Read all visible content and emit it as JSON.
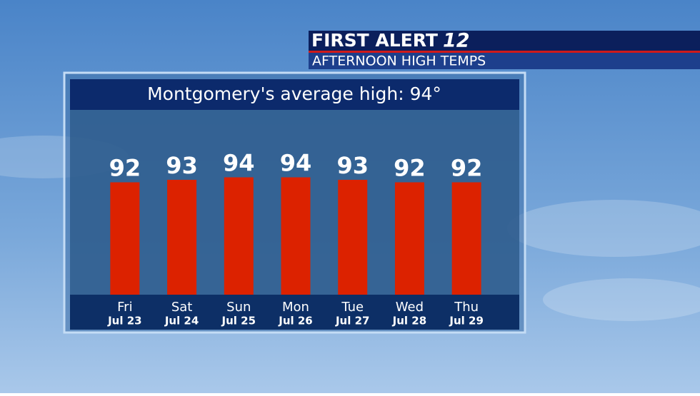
{
  "header": {
    "brand": "FIRST ALERT",
    "channel": "12",
    "subtitle": "AFTERNOON HIGH TEMPS"
  },
  "chart_data": {
    "type": "bar",
    "title": "Montgomery's average high: 94°",
    "categories": [
      "Fri",
      "Sat",
      "Sun",
      "Mon",
      "Tue",
      "Wed",
      "Thu"
    ],
    "dates": [
      "Jul 23",
      "Jul 24",
      "Jul 25",
      "Jul 26",
      "Jul 27",
      "Jul 28",
      "Jul 29"
    ],
    "values": [
      92,
      93,
      94,
      94,
      93,
      92,
      92
    ],
    "color": "#dc2200",
    "ylim": [
      47,
      95
    ]
  }
}
